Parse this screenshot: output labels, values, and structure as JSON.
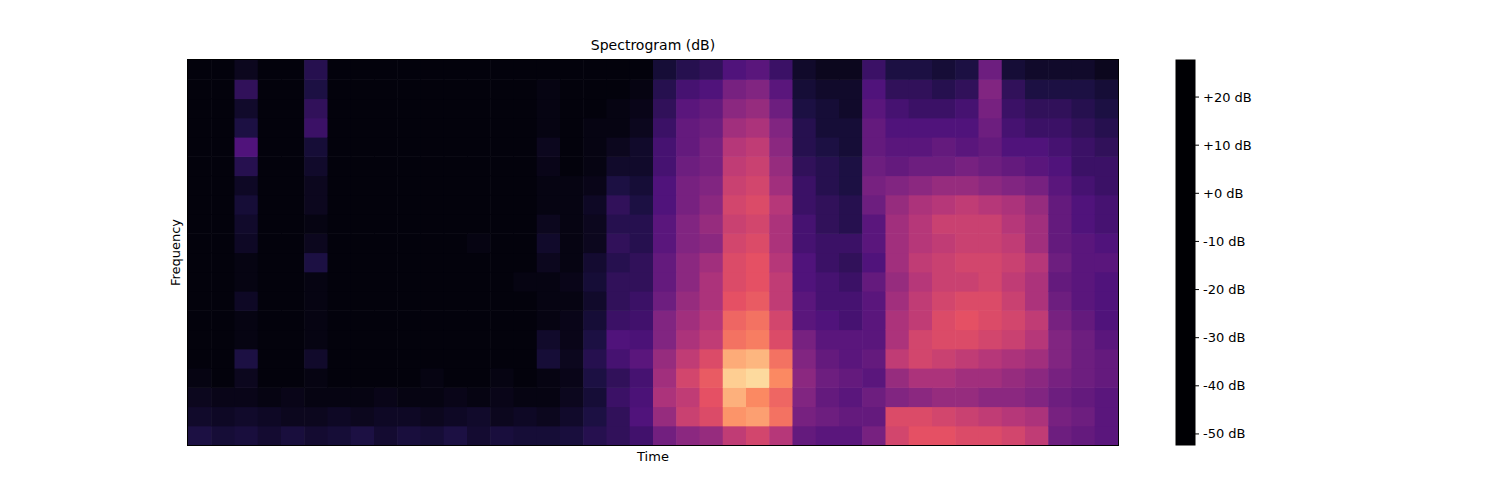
{
  "chart_data": {
    "type": "heatmap",
    "title": "Spectrogram (dB)",
    "x_label": "Time",
    "y_label": "Frequency",
    "tick_labels": false,
    "cells": [
      [
        -42,
        -46,
        -48,
        -50,
        -51,
        -51,
        -51,
        -51,
        -51,
        -51,
        -51,
        -51,
        -51,
        -51,
        -51,
        -51,
        -51,
        -51,
        -51,
        -51
      ],
      [
        -44,
        -47,
        -49,
        -51,
        -51,
        -51,
        -51,
        -51,
        -51,
        -51,
        -51,
        -51,
        -51,
        -51,
        -51,
        -51,
        -51,
        -51,
        -51,
        -51
      ],
      [
        -43,
        -46,
        -49,
        -48,
        -42,
        -50,
        -50,
        -47,
        -50,
        -50,
        -47,
        -46,
        -44,
        -47,
        -40,
        -32,
        -42,
        -46,
        -38,
        -48
      ],
      [
        -45,
        -47,
        -50,
        -51,
        -51,
        -51,
        -51,
        -51,
        -51,
        -51,
        -51,
        -51,
        -51,
        -51,
        -51,
        -51,
        -51,
        -51,
        -51,
        -51
      ],
      [
        -43,
        -48,
        -49,
        -51,
        -51,
        -51,
        -51,
        -51,
        -51,
        -51,
        -51,
        -51,
        -51,
        -51,
        -51,
        -51,
        -51,
        -51,
        -51,
        -51
      ],
      [
        -45,
        -48,
        -50,
        -50,
        -46,
        -50,
        -50,
        -50,
        -50,
        -42,
        -48,
        -50,
        -48,
        -48,
        -46,
        -44,
        -36,
        -38,
        -42,
        -40
      ],
      [
        -44,
        -47,
        -50,
        -51,
        -51,
        -51,
        -51,
        -51,
        -51,
        -51,
        -51,
        -51,
        -51,
        -51,
        -51,
        -51,
        -51,
        -51,
        -51,
        -51
      ],
      [
        -42,
        -48,
        -50,
        -51,
        -51,
        -51,
        -51,
        -51,
        -51,
        -51,
        -51,
        -51,
        -51,
        -51,
        -51,
        -51,
        -51,
        -51,
        -51,
        -51
      ],
      [
        -45,
        -47,
        -49,
        -51,
        -51,
        -51,
        -51,
        -51,
        -51,
        -51,
        -51,
        -51,
        -51,
        -51,
        -51,
        -51,
        -51,
        -51,
        -51,
        -51
      ],
      [
        -43,
        -47,
        -50,
        -51,
        -51,
        -51,
        -51,
        -51,
        -51,
        -51,
        -51,
        -51,
        -51,
        -51,
        -51,
        -51,
        -51,
        -51,
        -51,
        -51
      ],
      [
        -44,
        -48,
        -50,
        -50,
        -51,
        -51,
        -51,
        -51,
        -51,
        -51,
        -51,
        -51,
        -51,
        -51,
        -51,
        -51,
        -51,
        -51,
        -51,
        -51
      ],
      [
        -42,
        -47,
        -49,
        -51,
        -51,
        -51,
        -51,
        -51,
        -51,
        -51,
        -51,
        -51,
        -51,
        -51,
        -51,
        -51,
        -51,
        -51,
        -51,
        -51
      ],
      [
        -45,
        -46,
        -50,
        -51,
        -51,
        -51,
        -51,
        -51,
        -51,
        -51,
        -50,
        -51,
        -51,
        -51,
        -51,
        -51,
        -51,
        -51,
        -51,
        -51
      ],
      [
        -43,
        -48,
        -49,
        -50,
        -51,
        -51,
        -51,
        -51,
        -51,
        -51,
        -51,
        -51,
        -51,
        -51,
        -51,
        -51,
        -51,
        -51,
        -51,
        -51
      ],
      [
        -44,
        -47,
        -50,
        -51,
        -51,
        -51,
        -51,
        -51,
        -50,
        -51,
        -51,
        -51,
        -51,
        -51,
        -51,
        -51,
        -51,
        -51,
        -51,
        -51
      ],
      [
        -44,
        -48,
        -50,
        -50,
        -44,
        -46,
        -50,
        -50,
        -50,
        -48,
        -46,
        -48,
        -50,
        -50,
        -49,
        -48,
        -50,
        -50,
        -50,
        -51
      ],
      [
        -43,
        -46,
        -48,
        -49,
        -48,
        -49,
        -49,
        -50,
        -49,
        -50,
        -50,
        -50,
        -50,
        -50,
        -51,
        -51,
        -51,
        -51,
        -51,
        -51
      ],
      [
        -40,
        -42,
        -44,
        -42,
        -40,
        -42,
        -44,
        -46,
        -44,
        -45,
        -48,
        -48,
        -47,
        -49,
        -50,
        -50,
        -50,
        -51,
        -51,
        -51
      ],
      [
        -38,
        -38,
        -36,
        -38,
        -34,
        -32,
        -36,
        -38,
        -38,
        -40,
        -38,
        -40,
        -38,
        -42,
        -46,
        -48,
        -50,
        -50,
        -51,
        -51
      ],
      [
        -35,
        -32,
        -33,
        -34,
        -30,
        -33,
        -35,
        -36,
        -38,
        -38,
        -40,
        -40,
        -42,
        -44,
        -46,
        -46,
        -48,
        -49,
        -50,
        -51
      ],
      [
        -25,
        -18,
        -14,
        -16,
        -18,
        -22,
        -22,
        -26,
        -28,
        -28,
        -30,
        -30,
        -32,
        -32,
        -34,
        -34,
        -36,
        -38,
        -40,
        -44
      ],
      [
        -20,
        -8,
        -10,
        -6,
        -10,
        -14,
        -16,
        -18,
        -20,
        -20,
        -22,
        -22,
        -24,
        -24,
        -26,
        -28,
        -28,
        -30,
        -34,
        -40
      ],
      [
        -18,
        -4,
        -2,
        0,
        -4,
        -10,
        -12,
        -14,
        -14,
        -16,
        -20,
        -18,
        -20,
        -22,
        -24,
        -24,
        -26,
        -28,
        -32,
        -38
      ],
      [
        -10,
        10,
        15,
        20,
        14,
        4,
        2,
        -2,
        -4,
        -4,
        -6,
        -8,
        -6,
        -8,
        -10,
        -12,
        -16,
        -20,
        -24,
        -32
      ],
      [
        -6,
        12,
        8,
        22,
        16,
        6,
        4,
        0,
        -2,
        -2,
        -4,
        -6,
        -4,
        -6,
        -8,
        -10,
        -14,
        -18,
        -22,
        -30
      ],
      [
        -12,
        4,
        2,
        8,
        4,
        -4,
        -6,
        -10,
        -10,
        -12,
        -14,
        -14,
        -12,
        -16,
        -18,
        -20,
        -22,
        -26,
        -30,
        -36
      ],
      [
        -28,
        -24,
        -22,
        -20,
        -22,
        -24,
        -30,
        -30,
        -32,
        -32,
        -34,
        -34,
        -36,
        -36,
        -38,
        -40,
        -40,
        -42,
        -44,
        -46
      ],
      [
        -30,
        -26,
        -28,
        -26,
        -28,
        -30,
        -32,
        -34,
        -34,
        -36,
        -36,
        -38,
        -38,
        -40,
        -40,
        -42,
        -44,
        -44,
        -46,
        -48
      ],
      [
        -30,
        -28,
        -30,
        -28,
        -30,
        -30,
        -34,
        -34,
        -36,
        -38,
        -36,
        -40,
        -40,
        -42,
        -42,
        -44,
        -44,
        -46,
        -46,
        -48
      ],
      [
        -24,
        -28,
        -26,
        -30,
        -28,
        -30,
        -30,
        -30,
        -28,
        -32,
        -30,
        -30,
        -26,
        -24,
        -26,
        -28,
        -28,
        -30,
        -32,
        -36
      ],
      [
        -6,
        -4,
        -22,
        -18,
        -10,
        -14,
        -14,
        -16,
        -18,
        -16,
        -16,
        -16,
        -18,
        -22,
        -28,
        -30,
        -32,
        -34,
        -38,
        -42
      ],
      [
        -2,
        -4,
        -20,
        -14,
        -6,
        -6,
        -10,
        -10,
        -12,
        -10,
        -12,
        -12,
        -14,
        -20,
        -26,
        -30,
        -32,
        -36,
        -38,
        -42
      ],
      [
        -2,
        -6,
        -18,
        -14,
        -8,
        -4,
        -4,
        -6,
        -8,
        -8,
        -10,
        -8,
        -12,
        -18,
        -26,
        -28,
        -32,
        -36,
        -40,
        -44
      ],
      [
        -4,
        -8,
        -18,
        -16,
        -10,
        -4,
        -2,
        -4,
        -8,
        -6,
        -8,
        -8,
        -10,
        -18,
        -24,
        -30,
        -32,
        -34,
        -38,
        -42
      ],
      [
        -4,
        -10,
        -20,
        -16,
        -12,
        -6,
        -4,
        -4,
        -6,
        -6,
        -8,
        -8,
        -12,
        -20,
        -26,
        -28,
        -26,
        -24,
        -22,
        -26
      ],
      [
        -6,
        -12,
        -20,
        -18,
        -14,
        -8,
        -6,
        -8,
        -10,
        -8,
        -10,
        -12,
        -14,
        -22,
        -28,
        -32,
        -34,
        -36,
        -38,
        -44
      ],
      [
        -10,
        -14,
        -22,
        -20,
        -16,
        -12,
        -10,
        -14,
        -14,
        -12,
        -16,
        -16,
        -18,
        -24,
        -30,
        -32,
        -36,
        -38,
        -42,
        -46
      ],
      [
        -26,
        -24,
        -26,
        -24,
        -22,
        -22,
        -24,
        -26,
        -28,
        -26,
        -28,
        -28,
        -28,
        -30,
        -32,
        -34,
        -36,
        -38,
        -42,
        -46
      ],
      [
        -28,
        -26,
        -28,
        -26,
        -26,
        -26,
        -28,
        -30,
        -30,
        -30,
        -30,
        -32,
        -32,
        -34,
        -36,
        -36,
        -38,
        -40,
        -42,
        -46
      ],
      [
        -30,
        -30,
        -30,
        -28,
        -28,
        -30,
        -32,
        -32,
        -32,
        -30,
        -32,
        -34,
        -34,
        -36,
        -36,
        -38,
        -40,
        -42,
        -44,
        -48
      ]
    ],
    "colorbar": {
      "range": [
        -52.3,
        27.7
      ],
      "ticks": [
        {
          "value": 20,
          "label": "+20 dB"
        },
        {
          "value": 10,
          "label": "+10 dB"
        },
        {
          "value": 0,
          "label": "+0 dB"
        },
        {
          "value": -10,
          "label": "-10 dB"
        },
        {
          "value": -20,
          "label": "-20 dB"
        },
        {
          "value": -30,
          "label": "-30 dB"
        },
        {
          "value": -40,
          "label": "-40 dB"
        },
        {
          "value": -50,
          "label": "-50 dB"
        }
      ]
    }
  }
}
